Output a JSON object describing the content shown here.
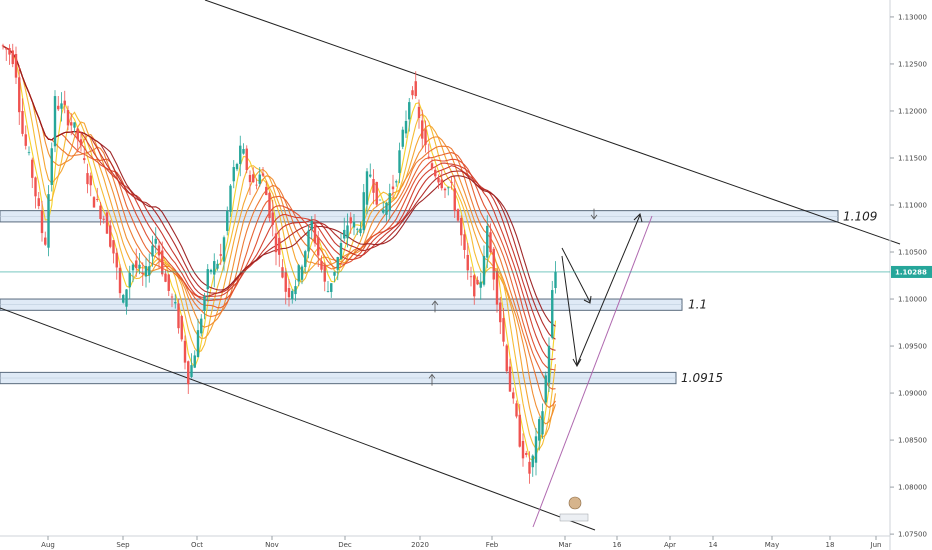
{
  "chart_data": {
    "type": "candlestick",
    "y_ticks": [
      "1.13000",
      "1.12500",
      "1.12000",
      "1.11500",
      "1.11000",
      "1.10500",
      "1.10000",
      "1.09500",
      "1.09000",
      "1.08500",
      "1.08000",
      "1.07500"
    ],
    "x_ticks": [
      "Aug",
      "Sep",
      "Oct",
      "Nov",
      "Dec",
      "2020",
      "Feb",
      "Mar",
      "16",
      "Apr",
      "14",
      "May",
      "18",
      "Jun"
    ],
    "ylim": [
      1.0748,
      1.1318
    ],
    "current_price": {
      "label": "1.10288",
      "value": 1.10288
    },
    "zones": [
      {
        "label": "1.109",
        "low": 1.1082,
        "high": 1.1094
      },
      {
        "label": "1.1",
        "low": 1.0988,
        "high": 1.1
      },
      {
        "label": "1.0915",
        "low": 1.091,
        "high": 1.0922
      }
    ],
    "colors": {
      "up": "#26a69a",
      "down": "#ef5350",
      "zone_fill": "#dfeaf6",
      "zone_border": "#5a6b7d",
      "price_line": "#26a69a"
    }
  }
}
